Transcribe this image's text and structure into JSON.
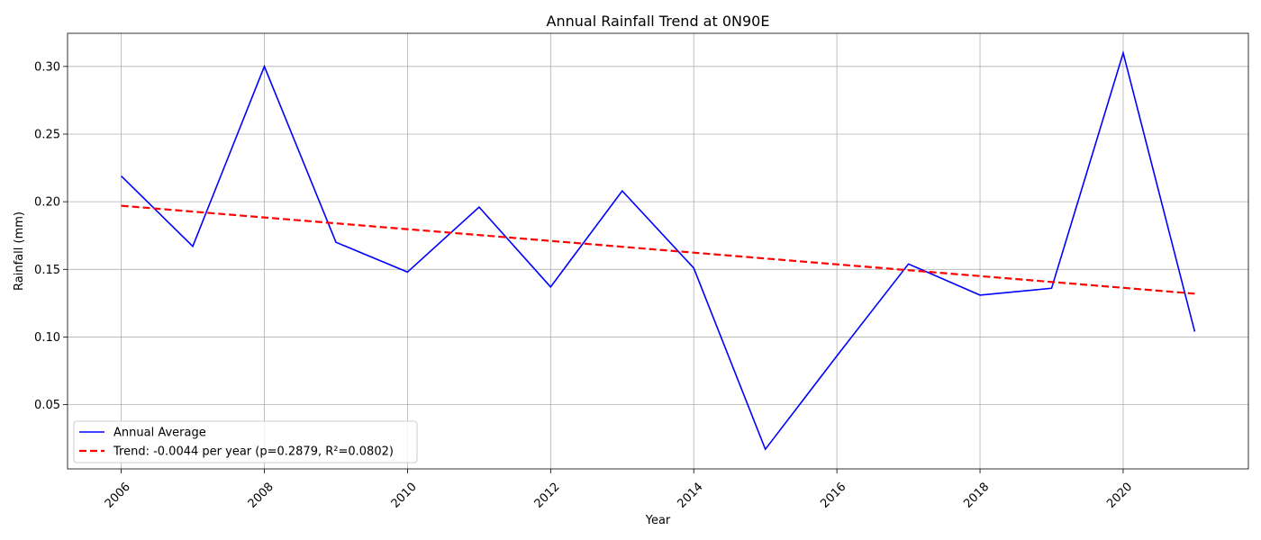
{
  "chart_data": {
    "type": "line",
    "title": "Annual Rainfall Trend at 0N90E",
    "xlabel": "Year",
    "ylabel": "Rainfall (mm)",
    "xlim": [
      2005.25,
      2021.75
    ],
    "ylim": [
      0.0025,
      0.3245
    ],
    "x_ticks": [
      2006,
      2008,
      2010,
      2012,
      2014,
      2016,
      2018,
      2020
    ],
    "x_tick_labels": [
      "2006",
      "2008",
      "2010",
      "2012",
      "2014",
      "2016",
      "2018",
      "2020"
    ],
    "y_ticks": [
      0.05,
      0.1,
      0.15,
      0.2,
      0.25,
      0.3
    ],
    "y_tick_labels": [
      "0.05",
      "0.10",
      "0.15",
      "0.20",
      "0.25",
      "0.30"
    ],
    "grid": true,
    "legend_position": "lower-left",
    "series": [
      {
        "name": "Annual Average",
        "style": "solid",
        "color": "#0000ff",
        "x": [
          2006,
          2007,
          2008,
          2009,
          2010,
          2011,
          2012,
          2013,
          2014,
          2015,
          2016,
          2017,
          2018,
          2019,
          2020,
          2021
        ],
        "values": [
          0.219,
          0.167,
          0.3,
          0.17,
          0.148,
          0.196,
          0.137,
          0.208,
          0.151,
          0.017,
          0.086,
          0.154,
          0.131,
          0.136,
          0.31,
          0.104
        ]
      },
      {
        "name": "Trend: -0.0044 per year (p=0.2879, R²=0.0802)",
        "style": "dashed",
        "color": "#ff0000",
        "x": [
          2006,
          2021
        ],
        "values": [
          0.197,
          0.132
        ]
      }
    ]
  }
}
